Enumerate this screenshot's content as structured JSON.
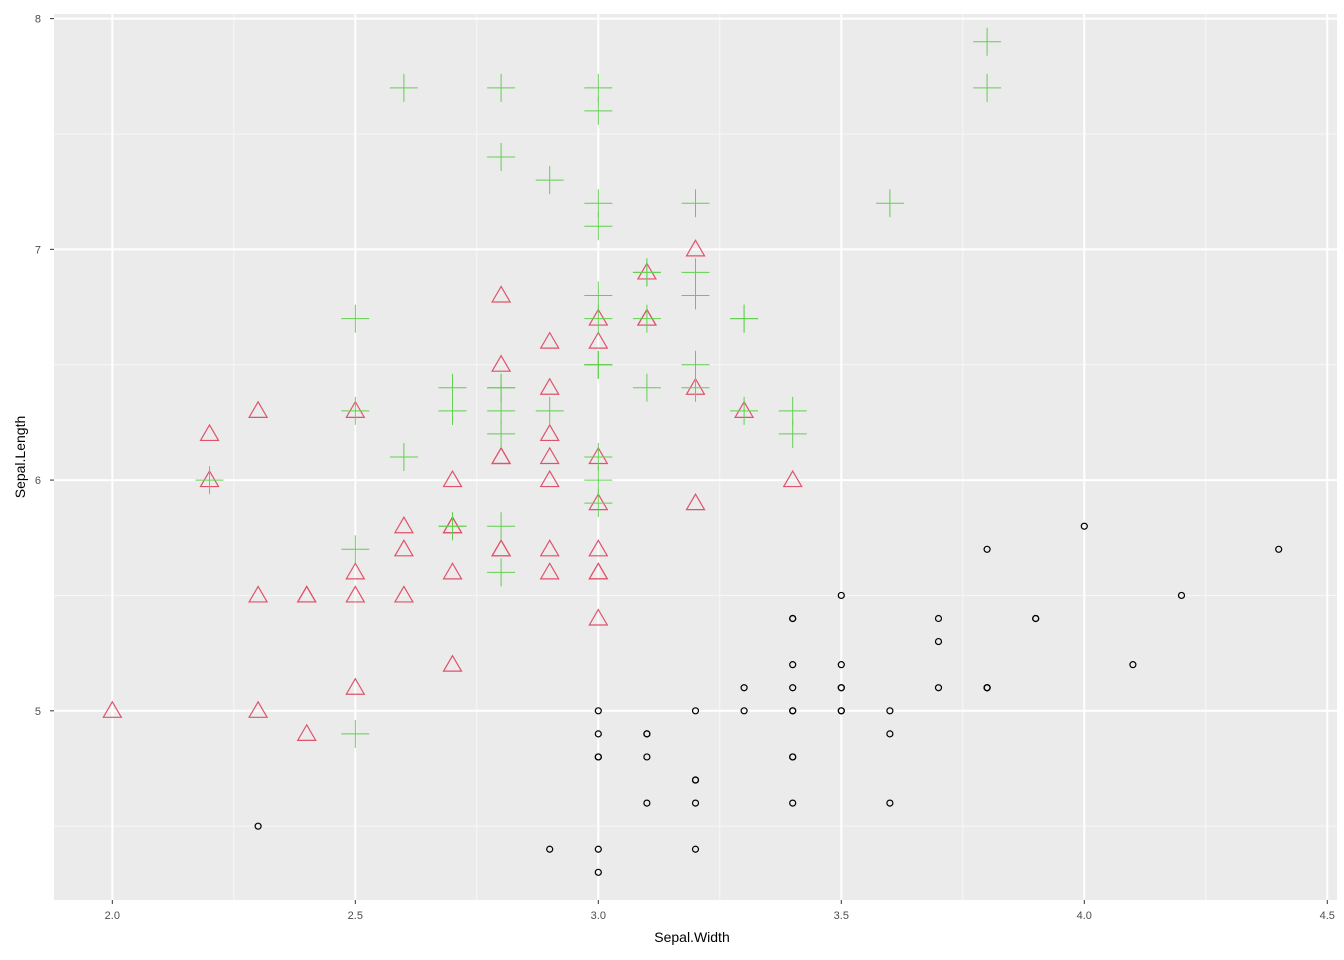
{
  "chart_data": {
    "type": "scatter",
    "xlabel": "Sepal.Width",
    "ylabel": "Sepal.Length",
    "xlim": [
      1.88,
      4.52
    ],
    "ylim": [
      4.18,
      8.02
    ],
    "grid": true,
    "legend": "none",
    "x_ticks": [
      {
        "value": 2.0,
        "label": "2.0"
      },
      {
        "value": 2.5,
        "label": "2.5"
      },
      {
        "value": 3.0,
        "label": "3.0"
      },
      {
        "value": 3.5,
        "label": "3.5"
      },
      {
        "value": 4.0,
        "label": "4.0"
      },
      {
        "value": 4.5,
        "label": "4.5"
      }
    ],
    "y_ticks": [
      {
        "value": 5,
        "label": "5"
      },
      {
        "value": 6,
        "label": "6"
      },
      {
        "value": 7,
        "label": "7"
      },
      {
        "value": 8,
        "label": "8"
      }
    ],
    "series": [
      {
        "shape": "circle",
        "color": "#000000",
        "points": [
          [
            3.5,
            5.1
          ],
          [
            3.0,
            4.9
          ],
          [
            3.2,
            4.7
          ],
          [
            3.1,
            4.6
          ],
          [
            3.6,
            5.0
          ],
          [
            3.9,
            5.4
          ],
          [
            3.4,
            4.6
          ],
          [
            3.4,
            5.0
          ],
          [
            2.9,
            4.4
          ],
          [
            3.1,
            4.9
          ],
          [
            3.7,
            5.4
          ],
          [
            3.4,
            4.8
          ],
          [
            3.0,
            4.8
          ],
          [
            3.0,
            4.3
          ],
          [
            4.0,
            5.8
          ],
          [
            4.4,
            5.7
          ],
          [
            3.9,
            5.4
          ],
          [
            3.5,
            5.1
          ],
          [
            3.8,
            5.7
          ],
          [
            3.8,
            5.1
          ],
          [
            3.4,
            5.4
          ],
          [
            3.7,
            5.1
          ],
          [
            3.6,
            4.6
          ],
          [
            3.3,
            5.1
          ],
          [
            3.4,
            4.8
          ],
          [
            3.0,
            5.0
          ],
          [
            3.4,
            5.0
          ],
          [
            3.5,
            5.2
          ],
          [
            3.4,
            5.2
          ],
          [
            3.2,
            4.7
          ],
          [
            3.1,
            4.8
          ],
          [
            3.4,
            5.4
          ],
          [
            4.1,
            5.2
          ],
          [
            4.2,
            5.5
          ],
          [
            3.1,
            4.9
          ],
          [
            3.2,
            5.0
          ],
          [
            3.5,
            5.5
          ],
          [
            3.6,
            4.9
          ],
          [
            3.0,
            4.4
          ],
          [
            3.4,
            5.1
          ],
          [
            3.5,
            5.0
          ],
          [
            2.3,
            4.5
          ],
          [
            3.2,
            4.4
          ],
          [
            3.5,
            5.0
          ],
          [
            3.8,
            5.1
          ],
          [
            3.0,
            4.8
          ],
          [
            3.8,
            5.1
          ],
          [
            3.2,
            4.6
          ],
          [
            3.7,
            5.3
          ],
          [
            3.3,
            5.0
          ]
        ]
      },
      {
        "shape": "triangle",
        "color": "#DF536B",
        "points": [
          [
            3.2,
            7.0
          ],
          [
            3.2,
            6.4
          ],
          [
            3.1,
            6.9
          ],
          [
            2.3,
            5.5
          ],
          [
            2.8,
            6.5
          ],
          [
            2.8,
            5.7
          ],
          [
            3.3,
            6.3
          ],
          [
            2.4,
            4.9
          ],
          [
            2.9,
            6.6
          ],
          [
            2.7,
            5.2
          ],
          [
            2.0,
            5.0
          ],
          [
            3.0,
            5.9
          ],
          [
            2.2,
            6.0
          ],
          [
            2.9,
            6.1
          ],
          [
            2.9,
            5.6
          ],
          [
            3.1,
            6.7
          ],
          [
            3.0,
            5.6
          ],
          [
            2.7,
            5.8
          ],
          [
            2.2,
            6.2
          ],
          [
            2.5,
            5.6
          ],
          [
            3.2,
            5.9
          ],
          [
            2.8,
            6.1
          ],
          [
            2.5,
            6.3
          ],
          [
            2.8,
            6.1
          ],
          [
            2.9,
            6.4
          ],
          [
            3.0,
            6.6
          ],
          [
            2.8,
            6.8
          ],
          [
            3.0,
            6.7
          ],
          [
            2.9,
            6.0
          ],
          [
            2.6,
            5.7
          ],
          [
            2.4,
            5.5
          ],
          [
            2.4,
            5.5
          ],
          [
            2.7,
            5.8
          ],
          [
            2.7,
            6.0
          ],
          [
            3.0,
            5.4
          ],
          [
            3.4,
            6.0
          ],
          [
            3.1,
            6.7
          ],
          [
            2.3,
            6.3
          ],
          [
            3.0,
            5.6
          ],
          [
            2.5,
            5.5
          ],
          [
            2.6,
            5.5
          ],
          [
            3.0,
            6.1
          ],
          [
            2.6,
            5.8
          ],
          [
            2.3,
            5.0
          ],
          [
            2.7,
            5.6
          ],
          [
            3.0,
            5.7
          ],
          [
            2.9,
            5.7
          ],
          [
            2.9,
            6.2
          ],
          [
            2.5,
            5.1
          ],
          [
            2.8,
            5.7
          ]
        ]
      },
      {
        "shape": "plus",
        "color": "#61D04F",
        "points": [
          [
            3.3,
            6.3
          ],
          [
            2.7,
            5.8
          ],
          [
            3.0,
            7.1
          ],
          [
            2.9,
            6.3
          ],
          [
            3.0,
            6.5
          ],
          [
            3.0,
            7.6
          ],
          [
            2.5,
            4.9
          ],
          [
            2.9,
            7.3
          ],
          [
            2.5,
            6.7
          ],
          [
            3.6,
            7.2
          ],
          [
            3.2,
            6.5
          ],
          [
            2.7,
            6.4
          ],
          [
            3.0,
            6.8
          ],
          [
            2.5,
            5.7
          ],
          [
            2.8,
            5.8
          ],
          [
            3.2,
            6.4
          ],
          [
            3.0,
            6.5
          ],
          [
            3.8,
            7.7
          ],
          [
            2.6,
            7.7
          ],
          [
            2.2,
            6.0
          ],
          [
            3.2,
            6.9
          ],
          [
            2.8,
            5.6
          ],
          [
            2.8,
            7.7
          ],
          [
            2.7,
            6.3
          ],
          [
            3.3,
            6.7
          ],
          [
            3.2,
            7.2
          ],
          [
            2.8,
            6.2
          ],
          [
            3.0,
            6.1
          ],
          [
            2.8,
            6.4
          ],
          [
            3.0,
            7.2
          ],
          [
            2.8,
            7.4
          ],
          [
            3.8,
            7.9
          ],
          [
            2.8,
            6.4
          ],
          [
            2.8,
            6.3
          ],
          [
            2.6,
            6.1
          ],
          [
            3.0,
            7.7
          ],
          [
            3.4,
            6.3
          ],
          [
            3.1,
            6.4
          ],
          [
            3.0,
            6.0
          ],
          [
            3.1,
            6.9
          ],
          [
            3.1,
            6.7
          ],
          [
            3.1,
            6.9
          ],
          [
            2.7,
            5.8
          ],
          [
            3.2,
            6.8
          ],
          [
            3.3,
            6.7
          ],
          [
            3.0,
            6.7
          ],
          [
            2.5,
            6.3
          ],
          [
            3.0,
            6.5
          ],
          [
            3.4,
            6.2
          ],
          [
            3.0,
            5.9
          ]
        ]
      }
    ]
  }
}
